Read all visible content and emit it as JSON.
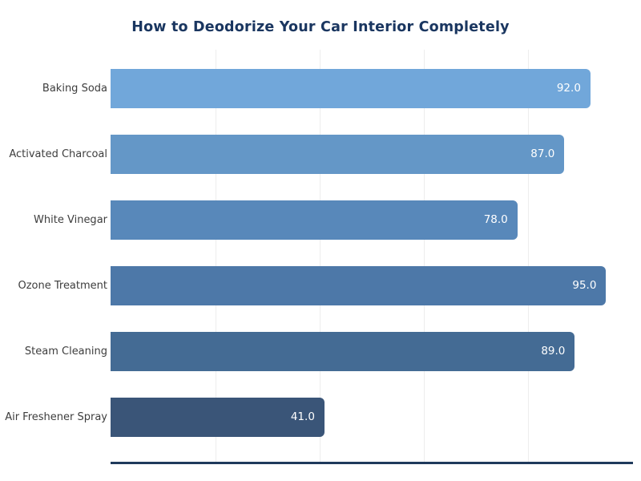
{
  "page": {
    "background": "#ffffff"
  },
  "chart": {
    "title": "How to Deodorize Your Car Interior Completely",
    "title_color": "#1a3660",
    "axis_line_color": "#1f3a5c",
    "gridline_color": "#ededed",
    "category_label_color": "#3d3d3d",
    "value_label_color": "#ffffff"
  },
  "chart_data": {
    "type": "bar",
    "orientation": "horizontal",
    "title": "How to Deodorize Your Car Interior Completely",
    "categories": [
      "Baking Soda",
      "Activated Charcoal",
      "White Vinegar",
      "Ozone Treatment",
      "Steam Cleaning",
      "Air Freshener Spray"
    ],
    "values": [
      92.0,
      87.0,
      78.0,
      95.0,
      89.0,
      41.0
    ],
    "value_labels": [
      "92.0",
      "87.0",
      "78.0",
      "95.0",
      "89.0",
      "41.0"
    ],
    "bar_colors": [
      "#71a7da",
      "#6497c7",
      "#5888ba",
      "#4d78a8",
      "#446b94",
      "#3a5578"
    ],
    "xlim": [
      0,
      100
    ],
    "x_gridlines": [
      20,
      40,
      60,
      80
    ],
    "xlabel": "",
    "ylabel": "",
    "legend": "none",
    "grid": "vertical-faint",
    "value_label_position": "inside-end"
  }
}
